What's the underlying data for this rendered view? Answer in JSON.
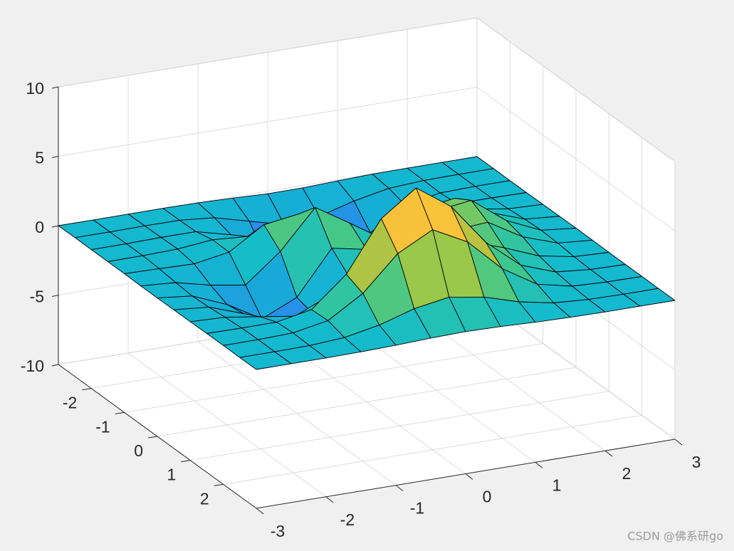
{
  "chart_data": {
    "type": "surface",
    "x": [
      -3,
      -2.5,
      -2,
      -1.5,
      -1,
      -0.5,
      0,
      0.5,
      1,
      1.5,
      2,
      2.5,
      3
    ],
    "y": [
      -3,
      -2.5,
      -2,
      -1.5,
      -1,
      -0.5,
      0,
      0.5,
      1,
      1.5,
      2,
      2.5,
      3
    ],
    "z": [
      [
        0,
        0,
        0,
        0.01,
        -0.01,
        -0.09,
        -0.19,
        -0.18,
        -0.09,
        -0.02,
        0,
        0,
        0
      ],
      [
        0,
        0,
        0.02,
        0.01,
        -0.22,
        -0.89,
        -1.54,
        -1.38,
        -0.68,
        -0.18,
        -0.03,
        0,
        0
      ],
      [
        0,
        0.01,
        0.05,
        0.05,
        -0.59,
        -2.63,
        -4.75,
        -4.34,
        -2.1,
        -0.53,
        -0.06,
        0,
        0
      ],
      [
        0,
        0.01,
        0.08,
        0.33,
        0.15,
        -2.19,
        -5.68,
        -5.76,
        -2.64,
        -0.44,
        0.04,
        0.03,
        0
      ],
      [
        -0.01,
        -0.06,
        -0.13,
        0.3,
        1.86,
        2.22,
        -0.72,
        -2.22,
        -0.27,
        0.88,
        0.5,
        0.11,
        0.01
      ],
      [
        -0.02,
        -0.2,
        -0.8,
        -1.21,
        0.8,
        3.55,
        2,
        0.39,
        2.2,
        2.56,
        1.12,
        0.23,
        0.02
      ],
      [
        -0.03,
        -0.3,
        -1.33,
        -2.77,
        -1.65,
        1.48,
        0.98,
        0.37,
        2.94,
        3.27,
        1.41,
        0.29,
        0.03
      ],
      [
        -0.02,
        -0.24,
        -1.12,
        -2.49,
        -2,
        0.39,
        0.46,
        0.38,
        2.38,
        2.56,
        1.09,
        0.23,
        0.02
      ],
      [
        -0.01,
        -0.11,
        -0.48,
        -0.86,
        0.23,
        2.79,
        3.69,
        2.93,
        2.43,
        1.58,
        0.58,
        0.11,
        0.01
      ],
      [
        0,
        -0.02,
        -0.01,
        0.48,
        2.61,
        6.2,
        8,
        6.25,
        3.25,
        1.19,
        0.29,
        0.05,
        0
      ],
      [
        0,
        0.01,
        0.08,
        0.55,
        2.09,
        4.55,
        5.85,
        4.56,
        2.21,
        0.68,
        0.13,
        0.02,
        0
      ],
      [
        0,
        0,
        0.03,
        0.19,
        0.68,
        1.44,
        1.86,
        1.45,
        0.69,
        0.2,
        0.04,
        0,
        0
      ],
      [
        0,
        0,
        0,
        0.03,
        0.09,
        0.19,
        0.24,
        0.19,
        0.09,
        0.03,
        0,
        0,
        0
      ]
    ],
    "xlim": [
      -3,
      3
    ],
    "ylim": [
      -3,
      3
    ],
    "zlim": [
      -10,
      10
    ],
    "xticks": [
      -3,
      -2,
      -1,
      0,
      1,
      2,
      3
    ],
    "yticks": [
      -2,
      -1,
      0,
      1,
      2
    ],
    "zticks": [
      -10,
      -5,
      0,
      5,
      10
    ],
    "grid": true,
    "colormap": [
      "#3d26a8",
      "#4050f0",
      "#2d86ee",
      "#18aad9",
      "#13bccc",
      "#3ec78d",
      "#98c84a",
      "#e6b934",
      "#fcc53a",
      "#f9fb15"
    ],
    "edgecolor": "#000000"
  },
  "watermark": "CSDN @佛系研go"
}
